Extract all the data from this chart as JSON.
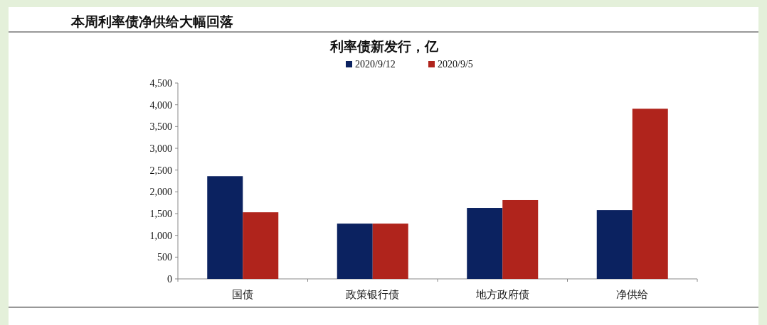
{
  "chart_data": {
    "type": "bar",
    "title": "本周利率债净供给大幅回落",
    "subtitle": "利率债新发行，亿",
    "categories": [
      "国债",
      "政策银行债",
      "地方政府债",
      "净供给"
    ],
    "series": [
      {
        "name": "2020/9/12",
        "color": "#0b2260",
        "values": [
          2360,
          1270,
          1630,
          1580
        ]
      },
      {
        "name": "2020/9/5",
        "color": "#b0241c",
        "values": [
          1530,
          1270,
          1810,
          3910
        ]
      }
    ],
    "ylim": [
      0,
      4500
    ],
    "yticks": [
      {
        "value": 0,
        "label": "0"
      },
      {
        "value": 500,
        "label": "500"
      },
      {
        "value": 1000,
        "label": "1,000"
      },
      {
        "value": 1500,
        "label": "1,500"
      },
      {
        "value": 2000,
        "label": "2,000"
      },
      {
        "value": 2500,
        "label": "2,500"
      },
      {
        "value": 3000,
        "label": "3,000"
      },
      {
        "value": 3500,
        "label": "3,500"
      },
      {
        "value": 4000,
        "label": "4,000"
      },
      {
        "value": 4500,
        "label": "4,500"
      }
    ],
    "legend": "top",
    "grid": false
  }
}
